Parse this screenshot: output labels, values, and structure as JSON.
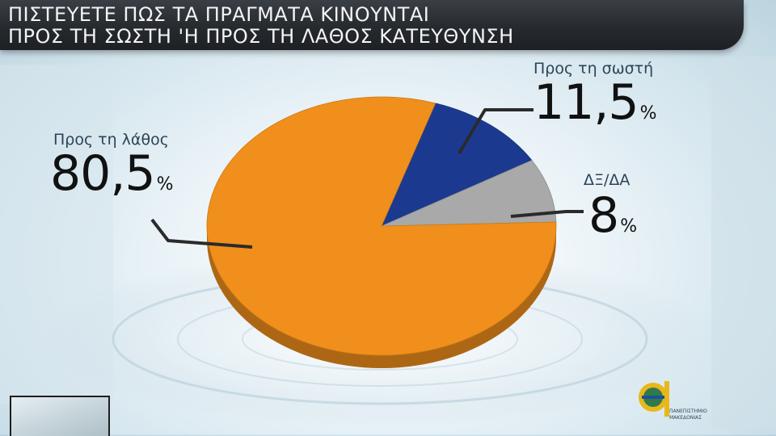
{
  "header": {
    "line1": "ΠΙΣΤΕΥΕΤΕ ΠΩΣ ΤΑ ΠΡΑΓΜΑΤΑ ΚΙΝΟΥΝΤΑΙ",
    "line2": "ΠΡΟΣ ΤΗ ΣΩΣΤΗ 'Η ΠΡΟΣ ΤΗ ΛΑΘΟΣ ΚΑΤΕΥΘΥΝΣΗ"
  },
  "chart_data": {
    "type": "pie",
    "title": "ΠΙΣΤΕΥΕΤΕ ΠΩΣ ΤΑ ΠΡΑΓΜΑΤΑ ΚΙΝΟΥΝΤΑΙ ΠΡΟΣ ΤΗ ΣΩΣΤΗ 'Η ΠΡΟΣ ΤΗ ΛΑΘΟΣ ΚΑΤΕΥΘΥΝΣΗ",
    "unit": "%",
    "slices": [
      {
        "label": "Προς τη σωστή",
        "value": 11.5,
        "value_text": "11,5",
        "color": "#1b3a8f"
      },
      {
        "label": "ΔΞ/ΔΑ",
        "value": 8,
        "value_text": "8",
        "color": "#a9a9a9"
      },
      {
        "label": "Προς τη λάθος",
        "value": 80.5,
        "value_text": "80,5",
        "color": "#f08f1c"
      }
    ],
    "legend": "none"
  },
  "logo": {
    "line1": "ΠΑΝΕΠΙΣΤΗΜΙΟ",
    "line2": "ΜΑΚΕΔΟΝΙΑΣ",
    "colors": {
      "gold": "#e8b81a",
      "green": "#2f7a4a",
      "blue": "#1d4f9a"
    }
  }
}
